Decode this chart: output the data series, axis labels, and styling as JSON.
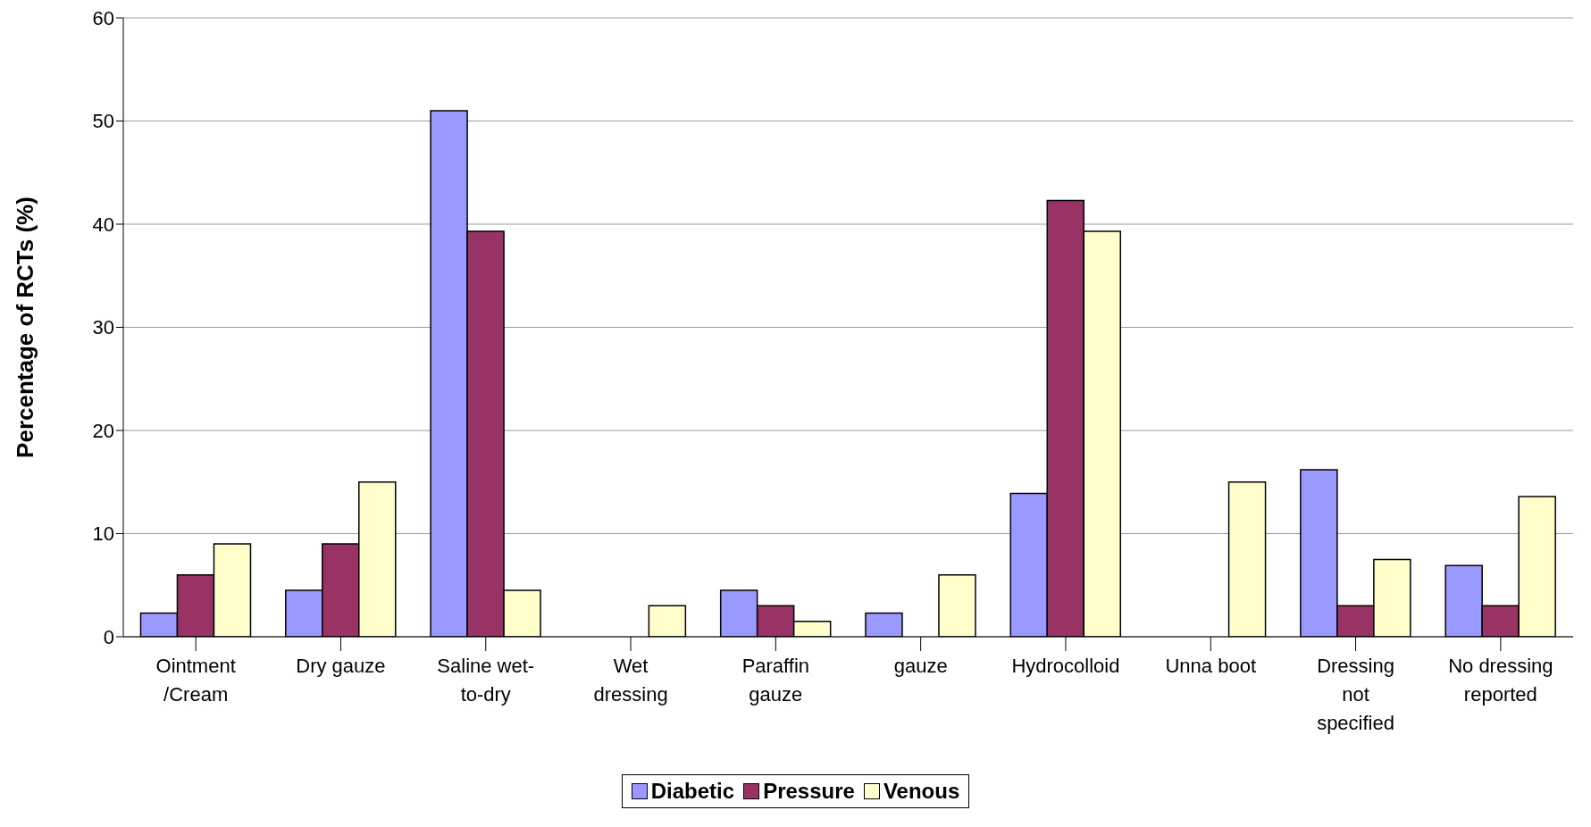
{
  "chart_data": {
    "type": "bar",
    "ylabel": "Percentage of RCTs (%)",
    "categories": [
      "Ointment /Cream",
      "Dry gauze",
      "Saline wet-to-dry",
      "Wet dressing",
      "Paraffin gauze",
      "gauze",
      "Hydrocolloid",
      "Unna boot",
      "Dressing not specified",
      "No dressing reported"
    ],
    "series": [
      {
        "name": "Diabetic",
        "color": "#9999ff",
        "values": [
          2.3,
          4.5,
          51,
          0,
          4.5,
          2.3,
          13.9,
          0,
          16.2,
          6.9
        ]
      },
      {
        "name": "Pressure",
        "color": "#993366",
        "values": [
          6,
          9,
          39.3,
          0,
          3,
          0,
          42.3,
          0,
          3,
          3
        ]
      },
      {
        "name": "Venous",
        "color": "#ffffcc",
        "values": [
          9,
          15,
          4.5,
          3,
          1.5,
          6,
          39.3,
          15,
          7.5,
          13.6
        ]
      }
    ],
    "ylim": [
      0,
      60
    ],
    "yticks": [
      0,
      10,
      20,
      30,
      40,
      50,
      60
    ],
    "grid": "y",
    "legend": "bottom"
  }
}
